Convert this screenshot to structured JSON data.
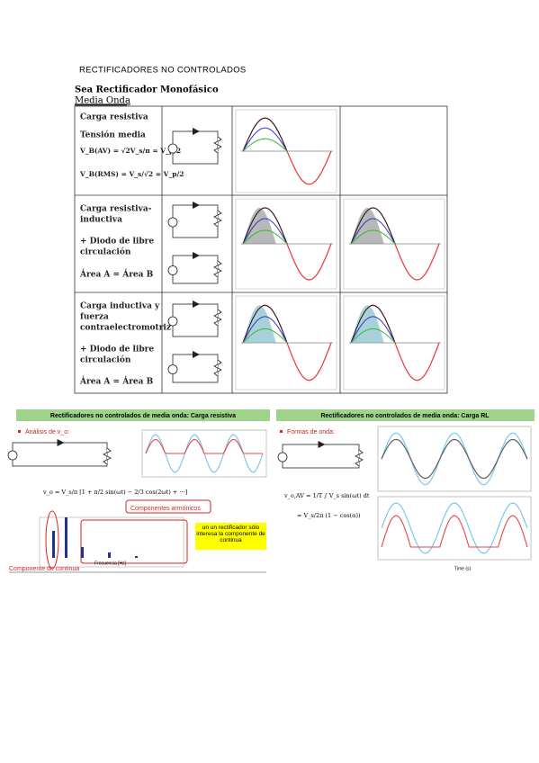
{
  "header": {
    "title": "RECTIFICADORES NO CONTROLADOS",
    "subtitle": "Sea Rectificador Monofásico",
    "section": "Media Onda"
  },
  "table": {
    "rows": [
      {
        "label": "Carga resistiva",
        "lines": [
          "Tensión media",
          "V_B(AV) = √2V_s/π = V_p/2",
          "V_B(RMS) = V_s/√2 = V_p/2"
        ]
      },
      {
        "label": "Carga resistiva-",
        "label2": "inductiva",
        "lines": [
          "+ Diodo de libre",
          "circulación",
          "Área A = Área B"
        ]
      },
      {
        "label": "Carga inductiva y",
        "label2": "fuerza",
        "label3": "contraelectromotriz",
        "lines": [
          "+ Diodo de libre",
          "circulación",
          "Área A = Área B"
        ]
      }
    ]
  },
  "slides": [
    {
      "title": "Rectificadores no controlados de media onda: Carga resistiva",
      "bullet": "Análisis de v_o:",
      "formula": "v_o = V_s/π [1 + π/2 sin(ωt) − 2/3 cos(2ωt) + ···]",
      "harmonics": "Componentes armónicos",
      "dc": "Componente de continua",
      "note": "un un rectificador sólo interesa la componente de continua",
      "xlabel": "Frecuencia [Hz]"
    },
    {
      "title": "Rectificadores no controlados de media onda: Carga RL",
      "bullet": "Formas de onda:",
      "formula": "v_o,AV = 1/T ∫ V_s sin(ωt) dt",
      "formula2": "= V_s/2π (1 − cos(α))",
      "xlabel": "Time (s)"
    }
  ]
}
